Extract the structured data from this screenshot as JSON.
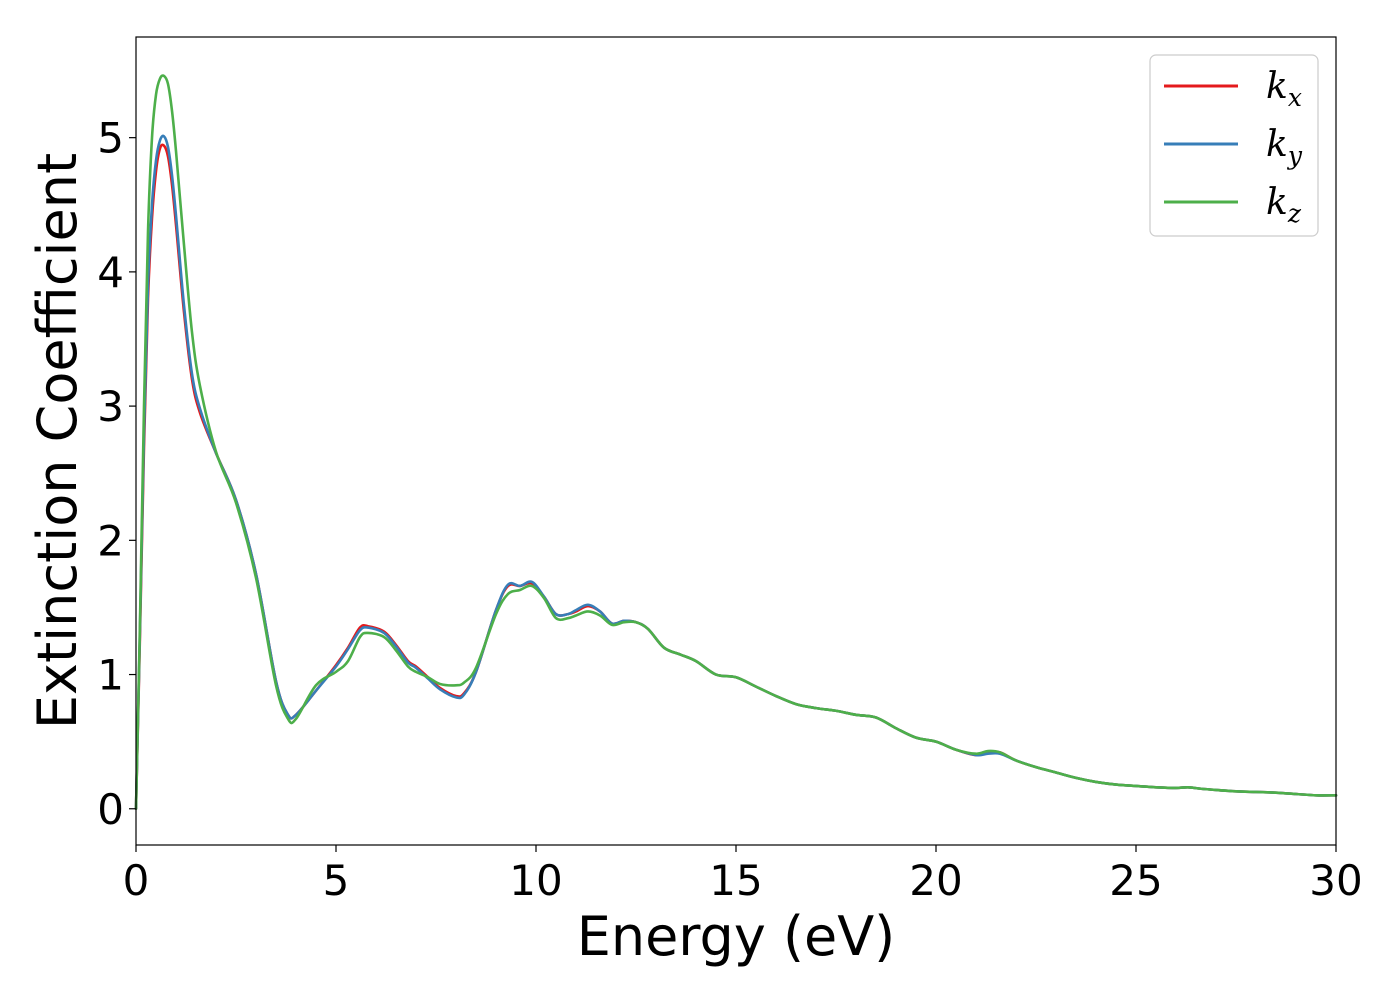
{
  "chart_data": {
    "type": "line",
    "title": "",
    "xlabel": "Energy (eV)",
    "ylabel": "Extinction Coefficient",
    "xlim": [
      0,
      30
    ],
    "ylim": [
      -0.27,
      5.75
    ],
    "xticks": [
      0,
      5,
      10,
      15,
      20,
      25,
      30
    ],
    "yticks": [
      0,
      1,
      2,
      3,
      4,
      5
    ],
    "grid": false,
    "legend_position": "top-right",
    "series": [
      {
        "name": "k_x",
        "label_base": "k",
        "label_sub": "x",
        "color": "#e41a1c",
        "x": [
          0,
          0.1,
          0.2,
          0.3,
          0.4,
          0.5,
          0.6,
          0.7,
          0.8,
          0.9,
          1.0,
          1.2,
          1.4,
          1.6,
          2.0,
          2.5,
          3.0,
          3.5,
          3.8,
          4.0,
          4.5,
          5.0,
          5.3,
          5.6,
          5.8,
          6.2,
          6.5,
          6.8,
          7.0,
          7.3,
          7.6,
          8.0,
          8.2,
          8.5,
          9.0,
          9.3,
          9.6,
          9.9,
          10.2,
          10.5,
          10.8,
          11.0,
          11.3,
          11.6,
          11.9,
          12.2,
          12.5,
          12.8,
          13.2,
          13.6,
          14.0,
          14.5,
          15.0,
          15.5,
          16.0,
          16.5,
          17.0,
          17.5,
          18.0,
          18.5,
          19.0,
          19.5,
          20.0,
          20.5,
          21.0,
          21.3,
          21.6,
          22.0,
          22.5,
          23.0,
          23.5,
          24.0,
          24.5,
          25.0,
          25.5,
          26.0,
          26.3,
          26.6,
          27.0,
          27.5,
          28.0,
          28.5,
          29.0,
          29.5,
          30.0
        ],
        "y": [
          0.0,
          1.3,
          2.7,
          3.8,
          4.4,
          4.75,
          4.92,
          4.94,
          4.86,
          4.65,
          4.35,
          3.7,
          3.2,
          2.95,
          2.65,
          2.3,
          1.75,
          0.95,
          0.7,
          0.7,
          0.88,
          1.07,
          1.2,
          1.35,
          1.36,
          1.32,
          1.22,
          1.1,
          1.06,
          0.98,
          0.9,
          0.84,
          0.86,
          1.02,
          1.48,
          1.66,
          1.66,
          1.68,
          1.58,
          1.45,
          1.45,
          1.47,
          1.51,
          1.47,
          1.38,
          1.4,
          1.39,
          1.34,
          1.2,
          1.15,
          1.1,
          1.0,
          0.98,
          0.91,
          0.84,
          0.78,
          0.75,
          0.73,
          0.7,
          0.68,
          0.6,
          0.53,
          0.5,
          0.44,
          0.4,
          0.42,
          0.42,
          0.36,
          0.31,
          0.27,
          0.23,
          0.2,
          0.18,
          0.17,
          0.16,
          0.155,
          0.16,
          0.15,
          0.14,
          0.13,
          0.125,
          0.12,
          0.11,
          0.1,
          0.1
        ]
      },
      {
        "name": "k_y",
        "label_base": "k",
        "label_sub": "y",
        "color": "#377eb8",
        "x": [
          0,
          0.1,
          0.2,
          0.3,
          0.4,
          0.5,
          0.6,
          0.7,
          0.8,
          0.9,
          1.0,
          1.2,
          1.4,
          1.6,
          2.0,
          2.5,
          3.0,
          3.5,
          3.8,
          4.0,
          4.5,
          5.0,
          5.3,
          5.6,
          5.8,
          6.2,
          6.5,
          6.8,
          7.0,
          7.3,
          7.6,
          8.0,
          8.2,
          8.5,
          9.0,
          9.3,
          9.6,
          9.9,
          10.2,
          10.5,
          10.8,
          11.0,
          11.3,
          11.6,
          11.9,
          12.2,
          12.5,
          12.8,
          13.2,
          13.6,
          14.0,
          14.5,
          15.0,
          15.5,
          16.0,
          16.5,
          17.0,
          17.5,
          18.0,
          18.5,
          19.0,
          19.5,
          20.0,
          20.5,
          21.0,
          21.3,
          21.6,
          22.0,
          22.5,
          23.0,
          23.5,
          24.0,
          24.5,
          25.0,
          25.5,
          26.0,
          26.3,
          26.6,
          27.0,
          27.5,
          28.0,
          28.5,
          29.0,
          29.5,
          30.0
        ],
        "y": [
          0.0,
          1.35,
          2.8,
          3.9,
          4.5,
          4.83,
          4.98,
          5.01,
          4.93,
          4.72,
          4.42,
          3.75,
          3.24,
          2.98,
          2.65,
          2.3,
          1.75,
          0.95,
          0.7,
          0.7,
          0.88,
          1.06,
          1.19,
          1.33,
          1.35,
          1.31,
          1.21,
          1.09,
          1.05,
          0.97,
          0.89,
          0.83,
          0.85,
          1.02,
          1.48,
          1.67,
          1.66,
          1.69,
          1.58,
          1.45,
          1.45,
          1.48,
          1.52,
          1.47,
          1.38,
          1.4,
          1.39,
          1.34,
          1.2,
          1.15,
          1.1,
          1.0,
          0.98,
          0.91,
          0.84,
          0.78,
          0.75,
          0.73,
          0.7,
          0.68,
          0.6,
          0.53,
          0.5,
          0.44,
          0.4,
          0.41,
          0.41,
          0.36,
          0.31,
          0.27,
          0.23,
          0.2,
          0.18,
          0.17,
          0.16,
          0.155,
          0.16,
          0.15,
          0.14,
          0.13,
          0.125,
          0.12,
          0.11,
          0.1,
          0.1
        ]
      },
      {
        "name": "k_z",
        "label_base": "k",
        "label_sub": "z",
        "color": "#4daf4a",
        "x": [
          0,
          0.1,
          0.2,
          0.3,
          0.4,
          0.5,
          0.6,
          0.7,
          0.8,
          0.9,
          1.0,
          1.2,
          1.4,
          1.6,
          2.0,
          2.5,
          3.0,
          3.5,
          3.8,
          4.0,
          4.5,
          5.0,
          5.3,
          5.6,
          5.8,
          6.2,
          6.5,
          6.8,
          7.0,
          7.3,
          7.6,
          8.0,
          8.2,
          8.5,
          9.0,
          9.3,
          9.6,
          9.9,
          10.2,
          10.5,
          10.8,
          11.0,
          11.3,
          11.6,
          11.9,
          12.2,
          12.5,
          12.8,
          13.2,
          13.6,
          14.0,
          14.5,
          15.0,
          15.5,
          16.0,
          16.5,
          17.0,
          17.5,
          18.0,
          18.5,
          19.0,
          19.5,
          20.0,
          20.5,
          21.0,
          21.3,
          21.6,
          22.0,
          22.5,
          23.0,
          23.5,
          24.0,
          24.5,
          25.0,
          25.5,
          26.0,
          26.3,
          26.6,
          27.0,
          27.5,
          28.0,
          28.5,
          29.0,
          29.5,
          30.0
        ],
        "y": [
          0.0,
          1.4,
          3.0,
          4.3,
          5.0,
          5.32,
          5.44,
          5.46,
          5.4,
          5.2,
          4.9,
          4.2,
          3.55,
          3.15,
          2.66,
          2.28,
          1.72,
          0.92,
          0.67,
          0.67,
          0.92,
          1.02,
          1.1,
          1.28,
          1.31,
          1.28,
          1.18,
          1.06,
          1.02,
          0.98,
          0.93,
          0.92,
          0.94,
          1.05,
          1.45,
          1.6,
          1.63,
          1.66,
          1.57,
          1.42,
          1.42,
          1.44,
          1.47,
          1.44,
          1.37,
          1.39,
          1.39,
          1.34,
          1.2,
          1.15,
          1.1,
          1.0,
          0.98,
          0.91,
          0.84,
          0.78,
          0.75,
          0.73,
          0.7,
          0.68,
          0.6,
          0.53,
          0.5,
          0.44,
          0.41,
          0.43,
          0.42,
          0.36,
          0.31,
          0.27,
          0.23,
          0.2,
          0.18,
          0.17,
          0.16,
          0.155,
          0.16,
          0.15,
          0.14,
          0.13,
          0.125,
          0.12,
          0.11,
          0.1,
          0.1
        ]
      }
    ]
  }
}
